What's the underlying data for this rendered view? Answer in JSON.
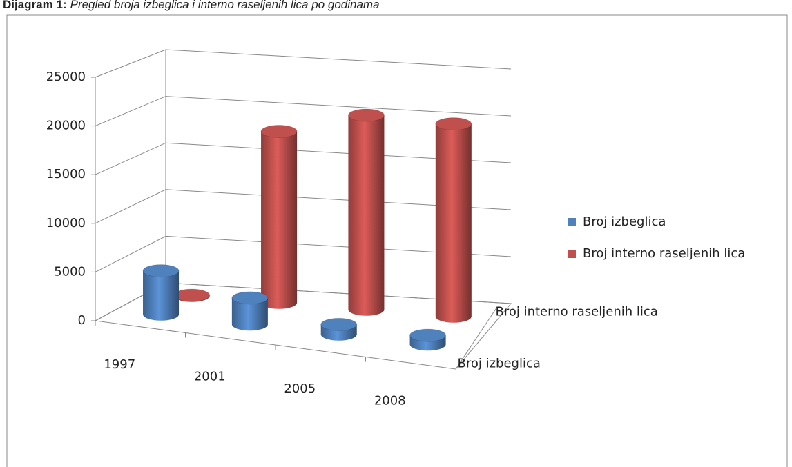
{
  "chart_data": {
    "type": "bar3d",
    "title_label": "Dijagram 1:",
    "title": "Pregled broja izbeglica i interno raseljenih lica po godinama",
    "categories": [
      "1997",
      "2001",
      "2005",
      "2008"
    ],
    "series": [
      {
        "name": "Broj izbeglica",
        "color": "#4f81bd",
        "values": [
          4500,
          2700,
          1000,
          900
        ]
      },
      {
        "name": "Broj interno raseljenih lica",
        "color": "#c0504d",
        "values": [
          50,
          18000,
          20300,
          20000
        ]
      }
    ],
    "ylim": [
      0,
      25000
    ],
    "yticks": [
      0,
      5000,
      10000,
      15000,
      20000,
      25000
    ],
    "grid": true
  }
}
